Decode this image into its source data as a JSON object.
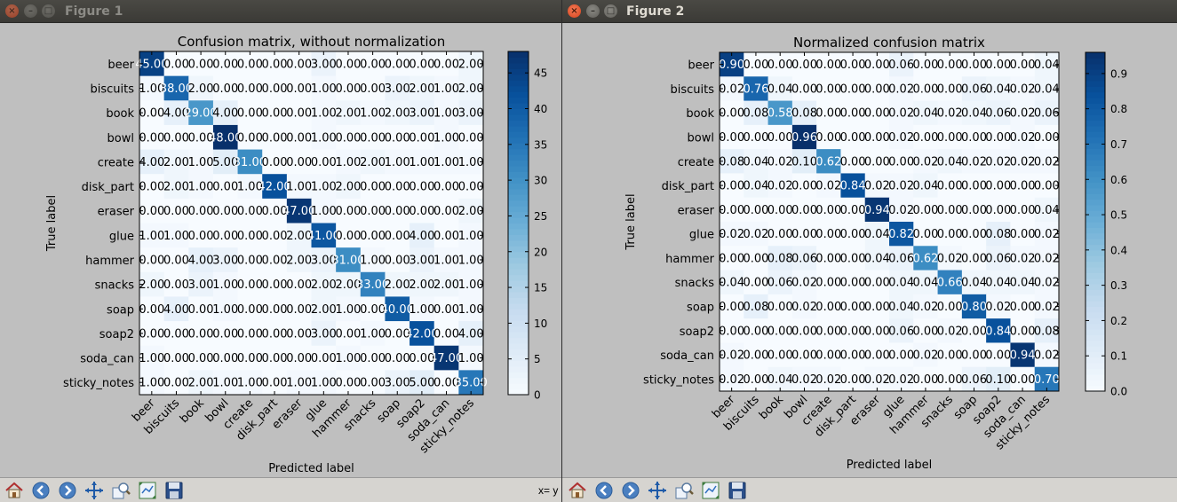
{
  "windows": [
    {
      "title": "Figure 1",
      "chart_data": {
        "type": "heatmap",
        "title": "Confusion matrix, without normalization",
        "xlabel": "Predicted label",
        "ylabel": "True label",
        "labels": [
          "beer",
          "biscuits",
          "book",
          "bowl",
          "create",
          "disk_part",
          "eraser",
          "glue",
          "hammer",
          "snacks",
          "soap",
          "soap2",
          "soda_can",
          "sticky_notes"
        ],
        "matrix": [
          [
            45,
            0,
            0,
            0,
            0,
            0,
            0,
            3,
            0,
            0,
            0,
            0,
            0,
            2
          ],
          [
            1,
            38,
            2,
            0,
            0,
            0,
            0,
            1,
            0,
            0,
            3,
            2,
            1,
            2
          ],
          [
            0,
            4,
            29,
            4,
            0,
            0,
            0,
            1,
            2,
            1,
            2,
            3,
            1,
            3
          ],
          [
            0,
            0,
            0,
            48,
            0,
            0,
            0,
            1,
            0,
            0,
            0,
            0,
            1,
            0
          ],
          [
            4,
            2,
            1,
            5,
            31,
            0,
            0,
            0,
            1,
            2,
            1,
            1,
            1,
            1
          ],
          [
            0,
            2,
            1,
            0,
            1,
            42,
            1,
            1,
            2,
            0,
            0,
            0,
            0,
            0
          ],
          [
            0,
            0,
            0,
            0,
            0,
            0,
            47,
            1,
            0,
            0,
            0,
            0,
            0,
            2
          ],
          [
            1,
            1,
            0,
            0,
            0,
            0,
            2,
            41,
            0,
            0,
            0,
            4,
            0,
            1
          ],
          [
            0,
            0,
            4,
            3,
            0,
            0,
            2,
            3,
            31,
            1,
            0,
            3,
            1,
            1
          ],
          [
            2,
            0,
            3,
            1,
            0,
            0,
            0,
            2,
            2,
            33,
            2,
            2,
            2,
            1
          ],
          [
            0,
            4,
            0,
            1,
            0,
            0,
            0,
            2,
            1,
            0,
            40,
            1,
            0,
            1
          ],
          [
            0,
            0,
            0,
            0,
            0,
            0,
            0,
            3,
            0,
            1,
            0,
            42,
            0,
            4
          ],
          [
            1,
            0,
            0,
            0,
            0,
            0,
            0,
            0,
            1,
            0,
            0,
            0,
            47,
            1
          ],
          [
            1,
            0,
            2,
            1,
            1,
            0,
            1,
            1,
            0,
            0,
            3,
            5,
            0,
            35
          ]
        ],
        "value_format": "integer",
        "cell_text_suffix": ".00",
        "color_range": [
          0,
          48
        ],
        "colorbar_ticks": [
          0,
          5,
          10,
          15,
          20,
          25,
          30,
          35,
          40,
          45
        ],
        "colormap": "Blues"
      }
    },
    {
      "title": "Figure 2",
      "chart_data": {
        "type": "heatmap",
        "title": "Normalized confusion matrix",
        "xlabel": "Predicted label",
        "ylabel": "True label",
        "labels": [
          "beer",
          "biscuits",
          "book",
          "bowl",
          "create",
          "disk_part",
          "eraser",
          "glue",
          "hammer",
          "snacks",
          "soap",
          "soap2",
          "soda_can",
          "sticky_notes"
        ],
        "matrix": [
          [
            0.9,
            0.0,
            0.0,
            0.0,
            0.0,
            0.0,
            0.0,
            0.06,
            0.0,
            0.0,
            0.0,
            0.0,
            0.0,
            0.04
          ],
          [
            0.02,
            0.76,
            0.04,
            0.0,
            0.0,
            0.0,
            0.0,
            0.02,
            0.0,
            0.0,
            0.06,
            0.04,
            0.02,
            0.04
          ],
          [
            0.0,
            0.08,
            0.58,
            0.08,
            0.0,
            0.0,
            0.0,
            0.02,
            0.04,
            0.02,
            0.04,
            0.06,
            0.02,
            0.06
          ],
          [
            0.0,
            0.0,
            0.0,
            0.96,
            0.0,
            0.0,
            0.0,
            0.02,
            0.0,
            0.0,
            0.0,
            0.0,
            0.02,
            0.0
          ],
          [
            0.08,
            0.04,
            0.02,
            0.1,
            0.62,
            0.0,
            0.0,
            0.0,
            0.02,
            0.04,
            0.02,
            0.02,
            0.02,
            0.02
          ],
          [
            0.0,
            0.04,
            0.02,
            0.0,
            0.02,
            0.84,
            0.02,
            0.02,
            0.04,
            0.0,
            0.0,
            0.0,
            0.0,
            0.0
          ],
          [
            0.0,
            0.0,
            0.0,
            0.0,
            0.0,
            0.0,
            0.94,
            0.02,
            0.0,
            0.0,
            0.0,
            0.0,
            0.0,
            0.04
          ],
          [
            0.02,
            0.02,
            0.0,
            0.0,
            0.0,
            0.0,
            0.04,
            0.82,
            0.0,
            0.0,
            0.0,
            0.08,
            0.0,
            0.02
          ],
          [
            0.0,
            0.0,
            0.08,
            0.06,
            0.0,
            0.0,
            0.04,
            0.06,
            0.62,
            0.02,
            0.0,
            0.06,
            0.02,
            0.02
          ],
          [
            0.04,
            0.0,
            0.06,
            0.02,
            0.0,
            0.0,
            0.0,
            0.04,
            0.04,
            0.66,
            0.04,
            0.04,
            0.04,
            0.02
          ],
          [
            0.0,
            0.08,
            0.0,
            0.02,
            0.0,
            0.0,
            0.0,
            0.04,
            0.02,
            0.0,
            0.8,
            0.02,
            0.0,
            0.02
          ],
          [
            0.0,
            0.0,
            0.0,
            0.0,
            0.0,
            0.0,
            0.0,
            0.06,
            0.0,
            0.02,
            0.0,
            0.84,
            0.0,
            0.08
          ],
          [
            0.02,
            0.0,
            0.0,
            0.0,
            0.0,
            0.0,
            0.0,
            0.0,
            0.02,
            0.0,
            0.0,
            0.0,
            0.94,
            0.02
          ],
          [
            0.02,
            0.0,
            0.04,
            0.02,
            0.02,
            0.0,
            0.02,
            0.02,
            0.0,
            0.0,
            0.06,
            0.1,
            0.0,
            0.7
          ]
        ],
        "value_format": "2dp",
        "color_range": [
          0,
          0.96
        ],
        "colorbar_ticks": [
          0.0,
          0.1,
          0.2,
          0.3,
          0.4,
          0.5,
          0.6,
          0.7,
          0.8,
          0.9
        ],
        "colormap": "Blues"
      }
    }
  ],
  "toolbar": {
    "tools": [
      "home-icon",
      "back-icon",
      "forward-icon",
      "pan-icon",
      "zoom-icon",
      "subplots-icon",
      "save-icon"
    ]
  },
  "status": {
    "coord_text": "x= y"
  }
}
